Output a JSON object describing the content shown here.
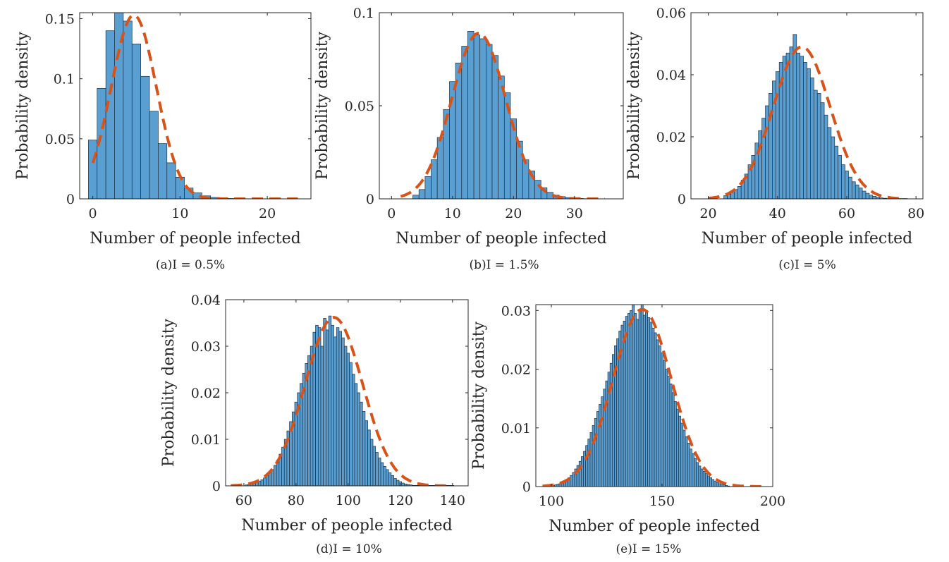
{
  "colors": {
    "bar_fill": "#5a9fd2",
    "bar_edge": "#1f2f40",
    "fit_line": "#d95319",
    "axis": "#262626"
  },
  "chart_data": [
    {
      "type": "bar",
      "caption": "(a)I = 0.5%",
      "xlabel": "Number of people infected",
      "ylabel": "Probability density",
      "xlim": [
        -1.5,
        25
      ],
      "ylim": [
        0,
        0.155
      ],
      "xticks": [
        0,
        10,
        20
      ],
      "xtick_labels": [
        "0",
        "10",
        "20"
      ],
      "yticks": [
        0,
        0.05,
        0.1,
        0.15
      ],
      "ytick_labels": [
        "0",
        "0.05",
        "0.1",
        "0.15"
      ],
      "grid": false,
      "bin_start": -0.5,
      "bin_width": 1,
      "values": [
        0.049,
        0.092,
        0.14,
        0.156,
        0.148,
        0.129,
        0.102,
        0.073,
        0.046,
        0.03,
        0.018,
        0.009,
        0.005,
        0.0025,
        0.0012,
        0.0006,
        0.0003,
        0.0002,
        0.0001,
        0.0001,
        0,
        0,
        0,
        0
      ],
      "fit_mean": 4.7,
      "fit_sd": 2.6,
      "fit_range": [
        0,
        23.5
      ],
      "fit_peak": 0.153
    },
    {
      "type": "bar",
      "caption": "(b)I = 1.5%",
      "xlabel": "Number of people infected",
      "ylabel": "Probability density",
      "xlim": [
        -2,
        38
      ],
      "ylim": [
        0,
        0.1
      ],
      "xticks": [
        0,
        10,
        20,
        30
      ],
      "xtick_labels": [
        "0",
        "10",
        "20",
        "30"
      ],
      "yticks": [
        0,
        0.05,
        0.1
      ],
      "ytick_labels": [
        "0",
        "0.05",
        "0.1"
      ],
      "grid": false,
      "bin_start": 3.5,
      "bin_width": 1,
      "values": [
        0.002,
        0.005,
        0.012,
        0.021,
        0.033,
        0.048,
        0.063,
        0.073,
        0.082,
        0.09,
        0.088,
        0.086,
        0.083,
        0.077,
        0.066,
        0.057,
        0.043,
        0.031,
        0.021,
        0.015,
        0.01,
        0.006,
        0.0035,
        0.002,
        0.0012,
        0.0007,
        0.0004,
        0.0002,
        0.0001,
        0.0001
      ],
      "fit_mean": 14.3,
      "fit_sd": 4.4,
      "fit_range": [
        1.5,
        35
      ],
      "fit_peak": 0.089
    },
    {
      "type": "bar",
      "caption": "(c)I = 5%",
      "xlabel": "Number of people infected",
      "ylabel": "Probability density",
      "xlim": [
        15,
        82
      ],
      "ylim": [
        0,
        0.06
      ],
      "xticks": [
        20,
        40,
        60,
        80
      ],
      "xtick_labels": [
        "20",
        "40",
        "60",
        "80"
      ],
      "yticks": [
        0,
        0.02,
        0.04,
        0.06
      ],
      "ytick_labels": [
        "0",
        "0.02",
        "0.04",
        "0.06"
      ],
      "grid": false,
      "bin_start": 24.5,
      "bin_width": 1,
      "values": [
        0.001,
        0.0015,
        0.002,
        0.003,
        0.004,
        0.006,
        0.008,
        0.011,
        0.014,
        0.018,
        0.022,
        0.026,
        0.03,
        0.034,
        0.038,
        0.041,
        0.044,
        0.046,
        0.047,
        0.049,
        0.053,
        0.047,
        0.046,
        0.044,
        0.042,
        0.039,
        0.035,
        0.034,
        0.031,
        0.027,
        0.023,
        0.02,
        0.017,
        0.014,
        0.011,
        0.009,
        0.007,
        0.0055,
        0.0045,
        0.0035,
        0.0025,
        0.0018,
        0.0012,
        0.0008,
        0.0005,
        0.0003,
        0.0002,
        0.0001,
        0.0001,
        0.0001,
        0.0001,
        0.0001,
        0.0001
      ],
      "fit_mean": 47,
      "fit_sd": 8.2,
      "fit_range": [
        20,
        76
      ],
      "fit_peak": 0.049
    },
    {
      "type": "bar",
      "caption": "(d)I = 10%",
      "xlabel": "Number of people infected",
      "ylabel": "Probability density",
      "xlim": [
        53,
        146
      ],
      "ylim": [
        0,
        0.04
      ],
      "xticks": [
        60,
        80,
        100,
        120,
        140
      ],
      "xtick_labels": [
        "60",
        "80",
        "100",
        "120",
        "140"
      ],
      "yticks": [
        0,
        0.01,
        0.02,
        0.03,
        0.04
      ],
      "ytick_labels": [
        "0",
        "0.01",
        "0.02",
        "0.03",
        "0.04"
      ],
      "grid": false,
      "bin_start": 60.5,
      "bin_width": 1,
      "values": [
        0.0002,
        0.0003,
        0.0004,
        0.0006,
        0.0008,
        0.001,
        0.0013,
        0.0017,
        0.0022,
        0.0028,
        0.0035,
        0.0044,
        0.0055,
        0.0068,
        0.0083,
        0.01,
        0.0118,
        0.0138,
        0.0159,
        0.018,
        0.02,
        0.022,
        0.0242,
        0.0263,
        0.028,
        0.03,
        0.033,
        0.0345,
        0.034,
        0.03,
        0.036,
        0.0335,
        0.0365,
        0.0345,
        0.032,
        0.034,
        0.0332,
        0.0318,
        0.03,
        0.0285,
        0.0265,
        0.024,
        0.022,
        0.02,
        0.018,
        0.016,
        0.014,
        0.012,
        0.01,
        0.0085,
        0.0072,
        0.006,
        0.005,
        0.0042,
        0.0035,
        0.0028,
        0.0022,
        0.0016,
        0.0012,
        0.0009,
        0.0006,
        0.0004,
        0.0003,
        0.0002,
        0.0001,
        0.0001,
        0.0001,
        0.0001,
        0.0001,
        0.0001,
        0.0001,
        0.0001,
        0.0001,
        0.0001,
        0.0001,
        0.0001,
        0.0001,
        0.0001,
        0.0001,
        0.0001
      ],
      "fit_mean": 94.5,
      "fit_sd": 11,
      "fit_range": [
        55,
        138
      ],
      "fit_peak": 0.0362
    },
    {
      "type": "bar",
      "caption": "(e)I = 15%",
      "xlabel": "Number of people infected",
      "ylabel": "Probability density",
      "xlim": [
        93,
        200
      ],
      "ylim": [
        0,
        0.031
      ],
      "xticks": [
        100,
        150,
        200
      ],
      "xtick_labels": [
        "100",
        "150",
        "200"
      ],
      "yticks": [
        0,
        0.01,
        0.02,
        0.03
      ],
      "ytick_labels": [
        "0",
        "0.01",
        "0.02",
        "0.03"
      ],
      "grid": false,
      "bin_start": 100.5,
      "bin_width": 1,
      "values": [
        0.0002,
        0.0003,
        0.0004,
        0.0005,
        0.0007,
        0.0009,
        0.0012,
        0.0015,
        0.0019,
        0.0024,
        0.003,
        0.0036,
        0.0043,
        0.0051,
        0.006,
        0.007,
        0.0081,
        0.0092,
        0.0104,
        0.0116,
        0.0128,
        0.014,
        0.0153,
        0.0166,
        0.018,
        0.0195,
        0.021,
        0.0225,
        0.024,
        0.0252,
        0.0265,
        0.0275,
        0.0282,
        0.029,
        0.0295,
        0.03,
        0.031,
        0.0295,
        0.0285,
        0.03,
        0.031,
        0.0292,
        0.03,
        0.0288,
        0.028,
        0.027,
        0.0262,
        0.025,
        0.024,
        0.0228,
        0.0215,
        0.02,
        0.0188,
        0.0175,
        0.016,
        0.0145,
        0.0132,
        0.012,
        0.0108,
        0.0096,
        0.0085,
        0.0074,
        0.0064,
        0.0056,
        0.0048,
        0.0041,
        0.0035,
        0.003,
        0.0026,
        0.0022,
        0.0018,
        0.0015,
        0.0012,
        0.0009,
        0.0007,
        0.0005,
        0.0004,
        0.0003,
        0.0002,
        0.0001
      ],
      "fit_mean": 141,
      "fit_sd": 13.2,
      "fit_range": [
        96,
        195
      ],
      "fit_peak": 0.0302
    }
  ]
}
